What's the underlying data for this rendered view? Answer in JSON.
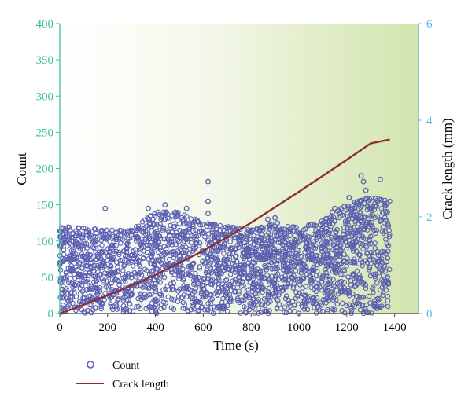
{
  "chart_data": {
    "type": "scatter",
    "xlabel": "Time (s)",
    "ylabel_left": "Count",
    "ylabel_right": "Crack length (mm)",
    "xlim": [
      0,
      1500
    ],
    "ylim_left": [
      0,
      400
    ],
    "ylim_right": [
      0,
      6
    ],
    "x_ticks": [
      0,
      200,
      400,
      600,
      800,
      1000,
      1200,
      1400
    ],
    "y_left_ticks": [
      0,
      50,
      100,
      150,
      200,
      250,
      300,
      350,
      400
    ],
    "y_right_ticks": [
      0,
      2,
      4,
      6
    ],
    "legend_placement": "bottom-left",
    "colors": {
      "count_marker": "#5a5fb0",
      "crack_line": "#8b2e35",
      "left_axis": "#3fbf9a",
      "right_axis": "#5bb8d8",
      "background_left": "#ffffff",
      "background_right": "#d6e6b4"
    },
    "series": [
      {
        "name": "Count",
        "kind": "scatter",
        "envelope_x": [
          0,
          100,
          200,
          300,
          400,
          500,
          600,
          700,
          800,
          900,
          1000,
          1100,
          1200,
          1300,
          1380
        ],
        "envelope_y": [
          120,
          118,
          115,
          115,
          140,
          140,
          125,
          120,
          115,
          125,
          118,
          128,
          150,
          160,
          155
        ],
        "points": [
          [
            190,
            145
          ],
          [
            370,
            145
          ],
          [
            440,
            150
          ],
          [
            530,
            145
          ],
          [
            620,
            182
          ],
          [
            620,
            155
          ],
          [
            620,
            138
          ],
          [
            870,
            130
          ],
          [
            900,
            132
          ],
          [
            910,
            125
          ],
          [
            1140,
            140
          ],
          [
            1150,
            145
          ],
          [
            1210,
            160
          ],
          [
            1230,
            150
          ],
          [
            1260,
            190
          ],
          [
            1270,
            182
          ],
          [
            1280,
            170
          ],
          [
            1340,
            185
          ],
          [
            1360,
            150
          ],
          [
            1370,
            140
          ]
        ]
      },
      {
        "name": "Crack length",
        "kind": "line",
        "x": [
          0,
          100,
          200,
          300,
          400,
          500,
          600,
          700,
          800,
          900,
          1000,
          1100,
          1200,
          1300,
          1380
        ],
        "y": [
          0,
          0.18,
          0.38,
          0.58,
          0.8,
          1.05,
          1.3,
          1.58,
          1.88,
          2.2,
          2.52,
          2.85,
          3.18,
          3.52,
          3.6
        ]
      }
    ]
  }
}
